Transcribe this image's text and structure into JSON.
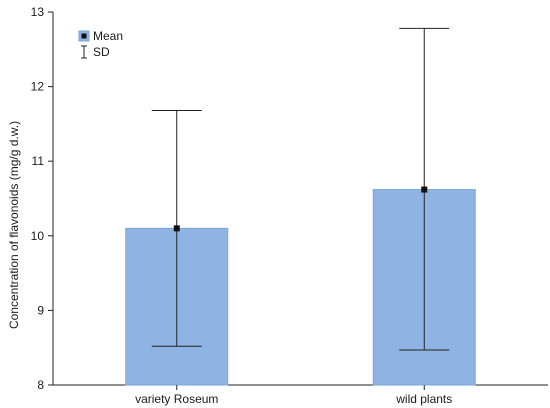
{
  "chart_data": {
    "type": "bar",
    "categories": [
      "variety Roseum",
      "wild plants"
    ],
    "series": [
      {
        "name": "Mean",
        "values": [
          10.1,
          10.62
        ],
        "sd_low": [
          8.52,
          8.47
        ],
        "sd_high": [
          11.68,
          12.78
        ]
      }
    ],
    "ylabel": "Concentration of flavonoids (mg/g d.w.)",
    "xlabel": "",
    "ylim": [
      8,
      13
    ],
    "yticks": [
      8,
      9,
      10,
      11,
      12,
      13
    ],
    "legend": {
      "position": "top-left",
      "items": [
        {
          "label": "Mean",
          "marker": "filled-square"
        },
        {
          "label": "SD",
          "marker": "error-bar"
        }
      ]
    },
    "grid": false,
    "colors": {
      "bar_fill": "#8fb4e3",
      "bar_stroke": "#7ea6d8",
      "marker": "#111111",
      "whisker": "#222222"
    }
  }
}
